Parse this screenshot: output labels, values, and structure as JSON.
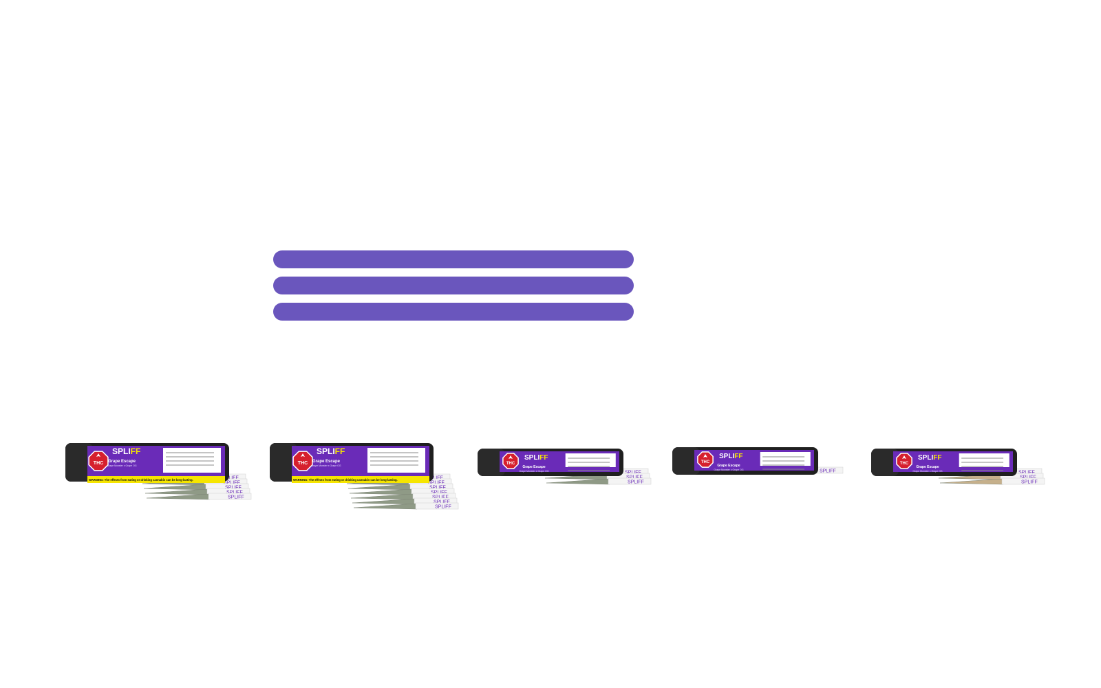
{
  "colors": {
    "bar": "#6a56bd",
    "label_purple": "#6a2bb8",
    "tube_black": "#1f1f1f",
    "warning_yellow": "#f6e500",
    "thc_red": "#d6202e",
    "joint_green": "#8f9a86",
    "joint_tan": "#c6b08b",
    "paper_white": "#f4f4f4"
  },
  "bars": [
    {
      "name": "placeholder-bar-1"
    },
    {
      "name": "placeholder-bar-2"
    },
    {
      "name": "placeholder-bar-3"
    }
  ],
  "brand": {
    "prefix": "SPLI",
    "suffix": "FF"
  },
  "products": [
    {
      "name": "Grape Escape",
      "strain": "Grape Monster x Grape OG",
      "tube": "long",
      "joints": 5,
      "joint_color": "green",
      "thc_badge": "THC",
      "warning": "WARNING: The effects from eating or drinking cannabis can be long-lasting."
    },
    {
      "name": "Grape Escape",
      "strain": "Grape Monster x Grape OG",
      "tube": "long",
      "joints": 7,
      "joint_color": "green",
      "thc_badge": "THC",
      "warning": "WARNING: The effects from eating or drinking cannabis can be long-lasting."
    },
    {
      "name": "Grape Escape",
      "strain": "Grape Monster x Grape OG",
      "tube": "short",
      "joints": 3,
      "joint_color": "green",
      "thc_badge": "THC",
      "warning": ""
    },
    {
      "name": "Grape Escape",
      "strain": "Grape Monster x Grape OG",
      "tube": "short",
      "joints": 1,
      "joint_color": "green",
      "thc_badge": "THC",
      "warning": ""
    },
    {
      "name": "Grape Escape",
      "strain": "Grape Monster x Grape OG",
      "tube": "short",
      "joints": 3,
      "joint_color": "tan",
      "thc_badge": "THC",
      "warning": ""
    }
  ]
}
